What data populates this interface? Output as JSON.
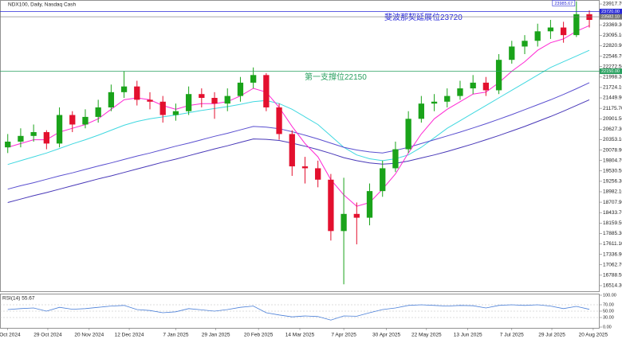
{
  "chart_data": {
    "type": "candlestick",
    "title": "NDX100, Daily, Nasdaq Cash",
    "up_color": "#1aa31a",
    "down_color": "#e3102e",
    "grid": false,
    "xlim": [
      -0.6,
      45.8
    ],
    "xticks": [
      {
        "value": 0,
        "label": "7 Oct 2024"
      },
      {
        "value": 3.1,
        "label": "29 Oct 2024"
      },
      {
        "value": 6.3,
        "label": "20 Nov 2024"
      },
      {
        "value": 9.4,
        "label": "12 Dec 2024"
      },
      {
        "value": 13,
        "label": "7 Jan 2025"
      },
      {
        "value": 16.1,
        "label": "29 Jan 2025"
      },
      {
        "value": 19.4,
        "label": "20 Feb 2025"
      },
      {
        "value": 22.6,
        "label": "14 Mar 2025"
      },
      {
        "value": 26,
        "label": "7 Apr 2025"
      },
      {
        "value": 29.3,
        "label": "30 Apr 2025"
      },
      {
        "value": 32.4,
        "label": "22 May 2025"
      },
      {
        "value": 35.6,
        "label": "13 Jun 2025"
      },
      {
        "value": 39,
        "label": "7 Jul 2025"
      },
      {
        "value": 42.1,
        "label": "29 Jul 2025"
      },
      {
        "value": 45.3,
        "label": "20 Aug 2025"
      }
    ],
    "ylim": [
      16367,
      24002
    ],
    "yticks": [
      {
        "value": 23917.7,
        "label": "23917.70"
      },
      {
        "value": 23369.3,
        "label": "23369.30"
      },
      {
        "value": 23095.1,
        "label": "23095.10"
      },
      {
        "value": 22820.9,
        "label": "22820.90"
      },
      {
        "value": 22546.7,
        "label": "22546.70"
      },
      {
        "value": 22272.5,
        "label": "22272.50"
      },
      {
        "value": 21998.3,
        "label": "21998.30"
      },
      {
        "value": 21724.1,
        "label": "21724.10"
      },
      {
        "value": 21449.9,
        "label": "21449.90"
      },
      {
        "value": 21175.7,
        "label": "21175.70"
      },
      {
        "value": 20901.5,
        "label": "20901.50"
      },
      {
        "value": 20627.3,
        "label": "20627.30"
      },
      {
        "value": 20353.1,
        "label": "20353.10"
      },
      {
        "value": 20078.9,
        "label": "20078.90"
      },
      {
        "value": 19804.7,
        "label": "19804.70"
      },
      {
        "value": 19530.5,
        "label": "19530.50"
      },
      {
        "value": 19256.3,
        "label": "19256.30"
      },
      {
        "value": 18982.1,
        "label": "18982.10"
      },
      {
        "value": 18707.9,
        "label": "18707.90"
      },
      {
        "value": 18433.7,
        "label": "18433.70"
      },
      {
        "value": 18159.5,
        "label": "18159.50"
      },
      {
        "value": 17885.3,
        "label": "17885.30"
      },
      {
        "value": 17611.1,
        "label": "17611.10"
      },
      {
        "value": 17336.9,
        "label": "17336.90"
      },
      {
        "value": 17062.7,
        "label": "17062.70"
      },
      {
        "value": 16788.5,
        "label": "16788.50"
      },
      {
        "value": 16514.3,
        "label": "16514.30"
      }
    ],
    "open": [
      20150,
      20300,
      20450,
      20550,
      20250,
      21000,
      20750,
      20950,
      21200,
      21600,
      21750,
      21400,
      21350,
      21000,
      21100,
      21550,
      21450,
      21300,
      21500,
      21850,
      22050,
      21200,
      20500,
      19650,
      19600,
      19300,
      17950,
      18400,
      18300,
      19000,
      19600,
      20100,
      20900,
      21300,
      21350,
      21500,
      21700,
      21850,
      21650,
      22450,
      22800,
      22950,
      23200,
      23300,
      23100,
      23650
    ],
    "high": [
      20500,
      20650,
      20750,
      20600,
      21200,
      21100,
      21150,
      21400,
      21800,
      22150,
      21900,
      21600,
      21500,
      21300,
      21750,
      21700,
      21600,
      21700,
      22000,
      22250,
      22100,
      21300,
      20600,
      19900,
      19800,
      19450,
      19350,
      18700,
      19200,
      19800,
      20300,
      21100,
      21500,
      21550,
      21700,
      21900,
      22050,
      22000,
      22600,
      22950,
      23100,
      23400,
      23500,
      23450,
      23985.67,
      23750
    ],
    "low": [
      20000,
      20150,
      20300,
      20100,
      20150,
      20550,
      20650,
      20800,
      21100,
      21450,
      21250,
      21150,
      20800,
      20850,
      21000,
      21200,
      20900,
      21100,
      21350,
      21700,
      21100,
      20350,
      19400,
      19200,
      19100,
      17700,
      16550,
      17600,
      18100,
      18850,
      19500,
      20000,
      20800,
      21100,
      21200,
      21400,
      21550,
      21500,
      21550,
      22350,
      22600,
      22800,
      23000,
      22900,
      23050,
      23300
    ],
    "close": [
      20300,
      20450,
      20550,
      20250,
      21000,
      20750,
      20950,
      21200,
      21600,
      21750,
      21400,
      21350,
      21000,
      21100,
      21550,
      21450,
      21300,
      21500,
      21850,
      22050,
      21200,
      20500,
      19650,
      19600,
      19300,
      17950,
      18400,
      18300,
      19000,
      19600,
      20100,
      20900,
      21300,
      21350,
      21500,
      21700,
      21850,
      21650,
      22450,
      22800,
      22950,
      23200,
      23300,
      23100,
      23650,
      23500
    ],
    "high_label": "23985.67",
    "ma_series": [
      {
        "color": "#40d8e0",
        "values": [
          19700,
          19800,
          19900,
          20000,
          20120,
          20240,
          20350,
          20470,
          20600,
          20730,
          20830,
          20900,
          20950,
          21000,
          21060,
          21120,
          21170,
          21220,
          21280,
          21350,
          21380,
          21300,
          21150,
          20950,
          20750,
          20450,
          20150,
          19950,
          19850,
          19800,
          19850,
          19950,
          20150,
          20400,
          20650,
          20850,
          21050,
          21250,
          21450,
          21650,
          21850,
          22050,
          22250,
          22400,
          22550,
          22700
        ]
      },
      {
        "color": "#5a4fd0",
        "values": [
          19050,
          19140,
          19220,
          19310,
          19400,
          19480,
          19570,
          19660,
          19740,
          19830,
          19920,
          20000,
          20090,
          20180,
          20260,
          20350,
          20440,
          20520,
          20610,
          20700,
          20680,
          20640,
          20560,
          20470,
          20370,
          20260,
          20150,
          20080,
          20030,
          20000,
          20070,
          20150,
          20250,
          20350,
          20450,
          20550,
          20660,
          20770,
          20890,
          21010,
          21140,
          21270,
          21400,
          21540,
          21690,
          21850
        ]
      },
      {
        "color": "#4838b8",
        "values": [
          18700,
          18790,
          18880,
          18960,
          19050,
          19140,
          19230,
          19320,
          19400,
          19490,
          19580,
          19670,
          19760,
          19840,
          19930,
          20020,
          20110,
          20190,
          20280,
          20370,
          20360,
          20330,
          20260,
          20180,
          20090,
          19990,
          19880,
          19800,
          19740,
          19710,
          19730,
          19790,
          19870,
          19950,
          20040,
          20140,
          20240,
          20350,
          20460,
          20580,
          20700,
          20830,
          20960,
          21100,
          21250,
          21400
        ]
      },
      {
        "color": "#ff2ad4",
        "values": [
          20150,
          20250,
          20350,
          20350,
          20550,
          20650,
          20750,
          20900,
          21150,
          21400,
          21450,
          21400,
          21250,
          21150,
          21250,
          21300,
          21300,
          21350,
          21500,
          21700,
          21600,
          21200,
          20700,
          20250,
          19900,
          19300,
          18900,
          18600,
          18700,
          19050,
          19450,
          20000,
          20500,
          20900,
          21150,
          21350,
          21550,
          21600,
          21850,
          22150,
          22400,
          22700,
          22900,
          23000,
          23200,
          23350
        ]
      }
    ],
    "levels": [
      {
        "value": 23720,
        "label": "23720.00",
        "color": "#2a2ad8",
        "note": "斐波那契延展位23720"
      },
      {
        "value": 23582.1,
        "label": "23582.10",
        "color": "#777777"
      },
      {
        "value": 22150,
        "label": "22150.00",
        "color": "#2aa060",
        "note": "第一支撐位22150"
      }
    ],
    "rsi": {
      "label": "RSI(14) 55.67",
      "color": "#4a7fd8",
      "ylim": [
        0,
        100
      ],
      "yticks": [
        {
          "value": 100,
          "label": "100.00"
        },
        {
          "value": 70,
          "label": "70.00"
        },
        {
          "value": 50,
          "label": "50.00"
        },
        {
          "value": 30,
          "label": "30.00"
        },
        {
          "value": 0,
          "label": "0.00"
        }
      ],
      "values": [
        55,
        58,
        60,
        50,
        62,
        56,
        58,
        62,
        66,
        68,
        55,
        52,
        45,
        48,
        58,
        54,
        50,
        55,
        62,
        66,
        45,
        38,
        32,
        35,
        33,
        22,
        35,
        34,
        45,
        55,
        60,
        68,
        70,
        68,
        66,
        68,
        67,
        60,
        68,
        70,
        68,
        70,
        66,
        58,
        65,
        55.67
      ]
    }
  }
}
